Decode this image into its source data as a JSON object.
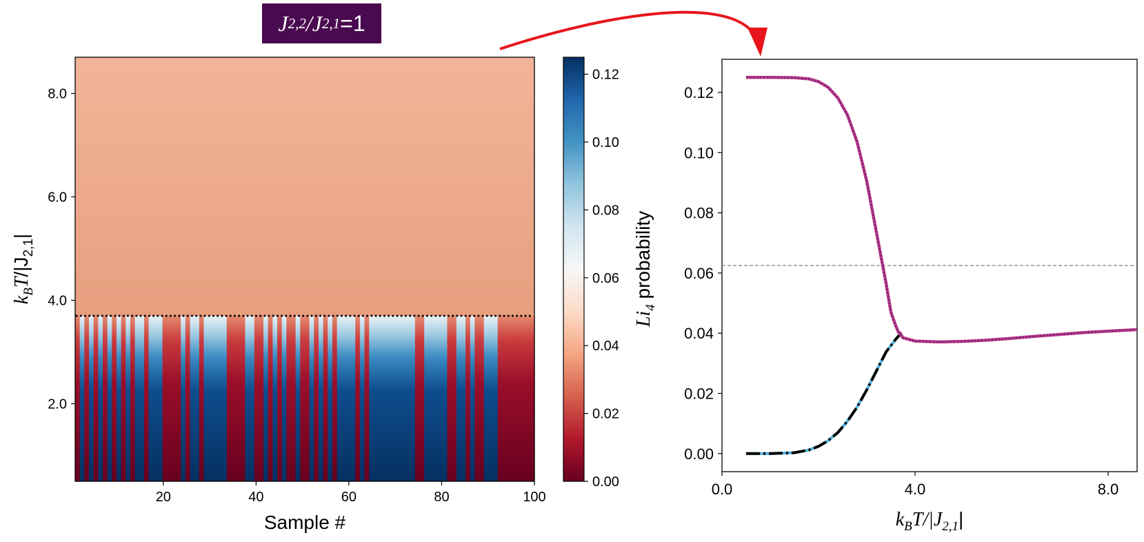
{
  "badge": {
    "j_num": "J",
    "j_num_sub": "2,2",
    "slash": "/",
    "j_den": "J",
    "j_den_sub": "2,1",
    "equals": "=1"
  },
  "colors": {
    "badge_bg": "#4a0a4f",
    "arrow": "#e8141c",
    "curve_magenta": "#c2378e",
    "curve_purple": "#5a2a6a",
    "curve_black": "#000000",
    "curve_cyan": "#4fb1dd",
    "dashed_line": "#808080"
  },
  "chart_data": [
    {
      "type": "heatmap",
      "title": "",
      "xlabel": "Sample #",
      "ylabel": "kBT/|J2,1|",
      "ylabel_parts": {
        "k": "k",
        "k_sub": "B",
        "T": "T",
        "rest": "/|J",
        "rest_sub": "2,1",
        "bar": "|"
      },
      "xlim": [
        1,
        100
      ],
      "ylim": [
        0.5,
        8.7
      ],
      "xticks": [
        "20",
        "40",
        "60",
        "80",
        "100"
      ],
      "xtick_values": [
        20,
        40,
        60,
        80,
        100
      ],
      "yticks": [
        "2.0",
        "4.0",
        "6.0",
        "8.0"
      ],
      "ytick_values": [
        2.0,
        4.0,
        6.0,
        8.0
      ],
      "transition_T": 3.7,
      "high_T_value": 0.036,
      "cell_state_low_T_samples_1_to_100": [
        0,
        1,
        0,
        1,
        0,
        1,
        0,
        1,
        0,
        1,
        0,
        1,
        0,
        1,
        1,
        0,
        1,
        1,
        1,
        0,
        0,
        0,
        0,
        1,
        0,
        1,
        1,
        0,
        1,
        1,
        1,
        1,
        1,
        0,
        0,
        0,
        0,
        1,
        1,
        0,
        0,
        1,
        0,
        1,
        0,
        1,
        0,
        0,
        1,
        0,
        0,
        1,
        0,
        1,
        0,
        1,
        0,
        1,
        1,
        1,
        1,
        0,
        1,
        0,
        1,
        1,
        1,
        1,
        1,
        1,
        1,
        1,
        1,
        1,
        0,
        0,
        1,
        1,
        1,
        1,
        1,
        0,
        0,
        1,
        1,
        0,
        1,
        0,
        0,
        1,
        1,
        1,
        0,
        0,
        0,
        0,
        0,
        0,
        0,
        0
      ],
      "colorbar": {
        "label": "Li4 probability",
        "label_parts": {
          "li": "Li",
          "li_sub": "4",
          "rest": " probability"
        },
        "min": 0.0,
        "max": 0.125,
        "ticks": [
          "0.00",
          "0.02",
          "0.04",
          "0.06",
          "0.08",
          "0.10",
          "0.12"
        ],
        "tick_values": [
          0.0,
          0.02,
          0.04,
          0.06,
          0.08,
          0.1,
          0.12
        ],
        "colormap": "RdBu"
      }
    },
    {
      "type": "line",
      "title": "",
      "xlabel": "kBT/|J2,1|",
      "xlabel_parts": {
        "k": "k",
        "k_sub": "B",
        "T": "T/|J",
        "sub": "2,1",
        "bar": "|"
      },
      "ylabel": "",
      "xlim": [
        0,
        8.6
      ],
      "ylim": [
        -0.006,
        0.131
      ],
      "xticks": [
        "0.0",
        "4.0",
        "8.0"
      ],
      "xtick_values": [
        0,
        4,
        8
      ],
      "yticks": [
        "0.00",
        "0.02",
        "0.04",
        "0.06",
        "0.08",
        "0.10",
        "0.12"
      ],
      "ytick_values": [
        0.0,
        0.02,
        0.04,
        0.06,
        0.08,
        0.1,
        0.12
      ],
      "hline": 0.0625,
      "series": [
        {
          "name": "upper branch",
          "style": "magenta-purple dotted",
          "x": [
            0.5,
            1.0,
            1.5,
            1.8,
            2.0,
            2.2,
            2.4,
            2.6,
            2.8,
            3.0,
            3.2,
            3.4,
            3.5,
            3.6,
            3.65,
            3.7,
            3.75,
            4.0,
            4.5,
            5.0,
            5.5,
            6.0,
            6.5,
            7.0,
            7.5,
            8.0,
            8.6
          ],
          "y": [
            0.125,
            0.125,
            0.1249,
            0.1245,
            0.1236,
            0.1217,
            0.1182,
            0.1125,
            0.1035,
            0.0905,
            0.0735,
            0.0565,
            0.047,
            0.0425,
            0.0405,
            0.0395,
            0.0385,
            0.0374,
            0.0371,
            0.0373,
            0.0377,
            0.0383,
            0.039,
            0.0396,
            0.0402,
            0.0407,
            0.0412
          ]
        },
        {
          "name": "lower branch",
          "style": "black-cyan dash-dot",
          "x": [
            0.5,
            1.0,
            1.5,
            1.8,
            2.0,
            2.2,
            2.4,
            2.6,
            2.8,
            3.0,
            3.2,
            3.4,
            3.6,
            3.7,
            3.75,
            4.0,
            4.5,
            5.0,
            5.5,
            6.0,
            6.5,
            7.0,
            7.5,
            8.0,
            8.6
          ],
          "y": [
            0.0,
            0.0,
            0.0003,
            0.0012,
            0.0024,
            0.0043,
            0.007,
            0.0108,
            0.0155,
            0.0212,
            0.0275,
            0.0338,
            0.038,
            0.0398,
            0.0385,
            0.0374,
            0.0371,
            0.0373,
            0.0377,
            0.0383,
            0.039,
            0.0396,
            0.0402,
            0.0407,
            0.0412
          ]
        }
      ]
    }
  ]
}
